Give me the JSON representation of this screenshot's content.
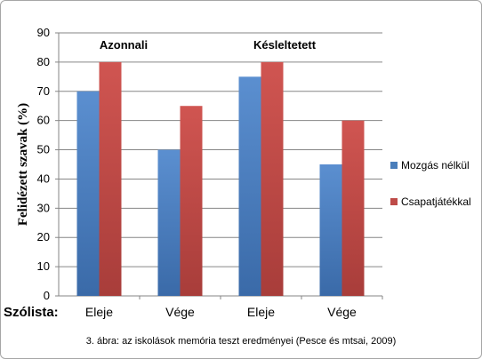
{
  "chart_data": {
    "type": "bar",
    "categories": [
      "Eleje",
      "Vége",
      "Eleje",
      "Vége"
    ],
    "series": [
      {
        "name": "Mozgás nélkül",
        "color": "#4a7ebb",
        "values": [
          70,
          50,
          75,
          45
        ]
      },
      {
        "name": "Csapatjátékkal",
        "color": "#be4b48",
        "values": [
          80,
          65,
          80,
          60
        ]
      }
    ],
    "ylabel": "Felidézett szavak  (%)",
    "ylim": [
      0,
      90
    ],
    "yticks": [
      0,
      10,
      20,
      30,
      40,
      50,
      60,
      70,
      80,
      90
    ],
    "grid": true,
    "legend_position": "right",
    "group_labels": [
      "Azonnali",
      "Késleltetett"
    ],
    "row_label": "Szólista:",
    "caption": "3. ábra: az iskolások memória teszt eredményei (Pesce és mtsai, 2009)"
  }
}
